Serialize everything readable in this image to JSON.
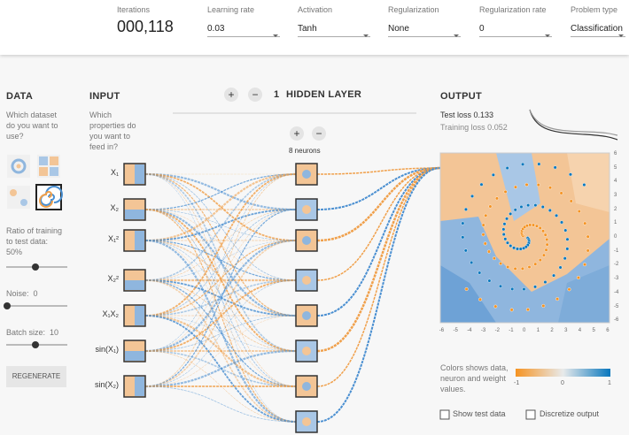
{
  "top_bar": {
    "iterations_label": "Iterations",
    "iterations": "000,118",
    "dropdowns": [
      {
        "label": "Learning rate",
        "value": "0.03"
      },
      {
        "label": "Activation",
        "value": "Tanh"
      },
      {
        "label": "Regularization",
        "value": "None"
      },
      {
        "label": "Regularization rate",
        "value": "0"
      },
      {
        "label": "Problem type",
        "value": "Classification"
      }
    ]
  },
  "data_panel": {
    "title": "DATA",
    "prompt": "Which dataset do you want to use?",
    "ratio_label": "Ratio of training to test data:",
    "ratio_value": "50%",
    "noise_label": "Noise:",
    "noise_value": "0",
    "batch_label": "Batch size:",
    "batch_value": "10",
    "regenerate": "REGENERATE"
  },
  "input": {
    "title": "INPUT",
    "prompt": "Which properties do you want to feed in?",
    "features": [
      "X₁",
      "X₂",
      "X₁²",
      "X₂²",
      "X₁X₂",
      "sin(X₁)",
      "sin(X₂)"
    ]
  },
  "hidden": {
    "layer_add": "+",
    "layer_remove": "−",
    "layer_count": "1",
    "title": "HIDDEN LAYER",
    "neuron_add": "+",
    "neuron_remove": "−",
    "neurons": "8 neurons"
  },
  "output": {
    "title": "OUTPUT",
    "test_loss": "Test loss 0.133",
    "training_loss": "Training loss 0.052",
    "y_ticks": [
      6,
      5,
      4,
      3,
      2,
      1,
      0,
      -1,
      -2,
      -3,
      -4,
      -5,
      -6
    ],
    "x_ticks": [
      -6,
      -5,
      -4,
      -3,
      -2,
      -1,
      0,
      1,
      2,
      3,
      4,
      5,
      6
    ],
    "legend_text": "Colors shows data, neuron and weight values.",
    "legend_ticks": [
      -1,
      0,
      1
    ],
    "show_test": "Show test data",
    "discretize": "Discretize output"
  }
}
